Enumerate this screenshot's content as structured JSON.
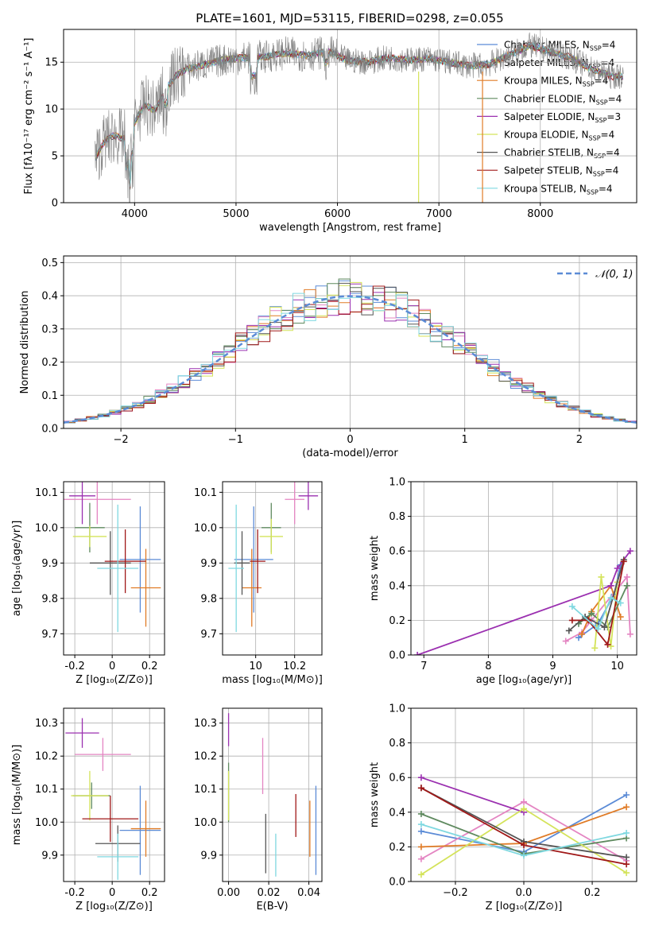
{
  "title": "PLATE=1601, MJD=53115, FIBERID=0298, z=0.055",
  "legend": [
    {
      "label": "Chabrier MILES, N",
      "sub": "SSP",
      "tail": "=4",
      "color": "#5b8bd6"
    },
    {
      "label": "Salpeter MILES, N",
      "sub": "SSP",
      "tail": "=4",
      "color": "#e485c2"
    },
    {
      "label": "Kroupa MILES, N",
      "sub": "SSP",
      "tail": "=4",
      "color": "#e07b26"
    },
    {
      "label": "Chabrier ELODIE, N",
      "sub": "SSP",
      "tail": "=4",
      "color": "#5f8a5f"
    },
    {
      "label": "Salpeter ELODIE, N",
      "sub": "SSP",
      "tail": "=3",
      "color": "#9b30b0"
    },
    {
      "label": "Kroupa ELODIE, N",
      "sub": "SSP",
      "tail": "=4",
      "color": "#d4e35a"
    },
    {
      "label": "Chabrier STELIB, N",
      "sub": "SSP",
      "tail": "=4",
      "color": "#555555"
    },
    {
      "label": "Salpeter STELIB, N",
      "sub": "SSP",
      "tail": "=4",
      "color": "#a01818"
    },
    {
      "label": "Kroupa STELIB, N",
      "sub": "SSP",
      "tail": "=4",
      "color": "#7fd8e0"
    }
  ],
  "chart_data": [
    {
      "type": "line",
      "id": "spectrum",
      "xlabel": "wavelength [Angstrom, rest frame]",
      "ylabel": "Flux [fλ10⁻¹⁷ erg cm⁻² s⁻¹ A⁻¹]",
      "xlim": [
        3300,
        8950
      ],
      "ylim": [
        0,
        18.5
      ],
      "xticks": [
        4000,
        5000,
        6000,
        7000,
        8000
      ],
      "yticks": [
        0,
        5,
        10,
        15
      ],
      "x": [
        3600,
        3700,
        3800,
        3900,
        4000,
        4100,
        4200,
        4300,
        4400,
        4500,
        4700,
        4900,
        5100,
        5300,
        5500,
        5700,
        5900,
        6100,
        6300,
        6500,
        6700,
        6900,
        7100,
        7300,
        7500,
        7700,
        7900,
        8100,
        8300,
        8500,
        8700
      ],
      "y": [
        4.5,
        6.5,
        7.2,
        6.8,
        8.5,
        10.5,
        9.8,
        12.0,
        13.5,
        14.2,
        14.8,
        15.3,
        15.5,
        15.6,
        16.0,
        15.7,
        16.2,
        15.2,
        15.0,
        15.5,
        15.2,
        15.4,
        15.0,
        14.6,
        14.8,
        15.8,
        16.8,
        16.1,
        15.5,
        14.3,
        13.5
      ]
    },
    {
      "type": "bar",
      "id": "residuals",
      "xlabel": "(data-model)/error",
      "ylabel": "Normed distribution",
      "xlim": [
        -2.5,
        2.5
      ],
      "ylim": [
        0,
        0.52
      ],
      "xticks": [
        -2,
        -1,
        0,
        1,
        2
      ],
      "xtick_labels": [
        "−2",
        "−1",
        "0",
        "1",
        "2"
      ],
      "yticks": [
        0.0,
        0.1,
        0.2,
        0.3,
        0.4,
        0.5
      ],
      "legend": "𝒩(0, 1)",
      "bin_width": 0.1,
      "gaussian": {
        "mean": 0,
        "sigma": 1
      }
    },
    {
      "type": "scatter",
      "id": "age-vs-Z",
      "xlabel": "Z [log₁₀(Z/Z⊙)]",
      "ylabel": "age  [log₁₀(age/yr)]",
      "xlim": [
        -0.26,
        0.28
      ],
      "ylim": [
        9.64,
        10.13
      ],
      "xticks": [
        -0.2,
        0.0,
        0.2
      ],
      "yticks": [
        9.7,
        9.8,
        9.9,
        10.0,
        10.1
      ],
      "points": [
        {
          "x": 0.15,
          "y": 9.91,
          "xe": 0.11,
          "ye": 0.15,
          "c": "#5b8bd6"
        },
        {
          "x": -0.08,
          "y": 10.08,
          "xe": 0.18,
          "ye": 0.07,
          "c": "#e485c2"
        },
        {
          "x": 0.18,
          "y": 9.83,
          "xe": 0.08,
          "ye": 0.11,
          "c": "#e07b26"
        },
        {
          "x": -0.12,
          "y": 10.0,
          "xe": 0.08,
          "ye": 0.07,
          "c": "#5f8a5f"
        },
        {
          "x": -0.16,
          "y": 10.09,
          "xe": 0.07,
          "ye": 0.08,
          "c": "#9b30b0"
        },
        {
          "x": -0.12,
          "y": 9.975,
          "xe": 0.09,
          "ye": 0.03,
          "c": "#d4e35a"
        },
        {
          "x": -0.01,
          "y": 9.9,
          "xe": 0.11,
          "ye": 0.09,
          "c": "#555555"
        },
        {
          "x": 0.07,
          "y": 9.905,
          "xe": 0.11,
          "ye": 0.09,
          "c": "#a01818"
        },
        {
          "x": 0.03,
          "y": 9.885,
          "xe": 0.11,
          "ye": 0.18,
          "c": "#7fd8e0"
        }
      ]
    },
    {
      "type": "scatter",
      "id": "age-vs-mass",
      "xlabel": "mass [log₁₀(M/M⊙)]",
      "ylabel": "",
      "xlim": [
        9.83,
        10.34
      ],
      "ylim": [
        9.64,
        10.13
      ],
      "xticks": [
        10.0,
        10.2
      ],
      "yticks": [
        9.7,
        9.8,
        9.9,
        10.0,
        10.1
      ],
      "points": [
        {
          "x": 9.99,
          "y": 9.91,
          "xe": 0.1,
          "ye": 0.15,
          "c": "#5b8bd6"
        },
        {
          "x": 10.2,
          "y": 10.08,
          "xe": 0.05,
          "ye": 0.07,
          "c": "#e485c2"
        },
        {
          "x": 9.98,
          "y": 9.83,
          "xe": 0.05,
          "ye": 0.11,
          "c": "#e07b26"
        },
        {
          "x": 10.08,
          "y": 10.0,
          "xe": 0.05,
          "ye": 0.07,
          "c": "#5f8a5f"
        },
        {
          "x": 10.27,
          "y": 10.09,
          "xe": 0.05,
          "ye": 0.04,
          "c": "#9b30b0"
        },
        {
          "x": 10.08,
          "y": 9.975,
          "xe": 0.06,
          "ye": 0.05,
          "c": "#d4e35a"
        },
        {
          "x": 9.93,
          "y": 9.9,
          "xe": 0.04,
          "ye": 0.09,
          "c": "#555555"
        },
        {
          "x": 10.01,
          "y": 9.905,
          "xe": 0.04,
          "ye": 0.09,
          "c": "#a01818"
        },
        {
          "x": 9.9,
          "y": 9.885,
          "xe": 0.04,
          "ye": 0.18,
          "c": "#7fd8e0"
        }
      ]
    },
    {
      "type": "line",
      "id": "weight-vs-age",
      "xlabel": "age  [log₁₀(age/yr)]",
      "ylabel": "mass weight",
      "xlim": [
        6.8,
        10.3
      ],
      "ylim": [
        0,
        1.0
      ],
      "xticks": [
        7,
        8,
        9,
        10
      ],
      "yticks": [
        0.0,
        0.2,
        0.4,
        0.6,
        0.8,
        1.0
      ],
      "series": [
        {
          "c": "#5b8bd6",
          "x": [
            9.4,
            9.7,
            9.95,
            10.05
          ],
          "y": [
            0.1,
            0.18,
            0.35,
            0.52
          ]
        },
        {
          "c": "#e485c2",
          "x": [
            9.2,
            9.45,
            9.6,
            10.15,
            10.2
          ],
          "y": [
            0.08,
            0.13,
            0.2,
            0.45,
            0.12
          ]
        },
        {
          "c": "#e07b26",
          "x": [
            9.45,
            9.6,
            9.9,
            10.05
          ],
          "y": [
            0.12,
            0.25,
            0.4,
            0.22
          ]
        },
        {
          "c": "#5f8a5f",
          "x": [
            9.4,
            9.6,
            9.85,
            10.15
          ],
          "y": [
            0.18,
            0.24,
            0.16,
            0.4
          ]
        },
        {
          "c": "#9b30b0",
          "x": [
            6.9,
            9.9,
            10.0,
            10.2
          ],
          "y": [
            0.0,
            0.4,
            0.5,
            0.6
          ]
        },
        {
          "c": "#d4e35a",
          "x": [
            9.65,
            9.75,
            9.9,
            10.0
          ],
          "y": [
            0.04,
            0.45,
            0.05,
            0.42
          ]
        },
        {
          "c": "#555555",
          "x": [
            9.25,
            9.5,
            9.8,
            10.1
          ],
          "y": [
            0.14,
            0.22,
            0.16,
            0.55
          ]
        },
        {
          "c": "#a01818",
          "x": [
            9.3,
            9.55,
            9.85,
            10.1
          ],
          "y": [
            0.2,
            0.2,
            0.06,
            0.54
          ]
        },
        {
          "c": "#7fd8e0",
          "x": [
            9.3,
            9.7,
            9.9,
            10.05
          ],
          "y": [
            0.28,
            0.15,
            0.33,
            0.3
          ]
        }
      ]
    },
    {
      "type": "scatter",
      "id": "mass-vs-Z",
      "xlabel": "Z [log₁₀(Z/Z⊙)]",
      "ylabel": "mass [log₁₀(M/M⊙)]",
      "xlim": [
        -0.26,
        0.28
      ],
      "ylim": [
        9.82,
        10.345
      ],
      "xticks": [
        -0.2,
        0.0,
        0.2
      ],
      "yticks": [
        9.9,
        10.0,
        10.1,
        10.2,
        10.3
      ],
      "points": [
        {
          "x": 0.15,
          "y": 9.975,
          "xe": 0.11,
          "ye": 0.135,
          "c": "#5b8bd6"
        },
        {
          "x": -0.05,
          "y": 10.205,
          "xe": 0.15,
          "ye": 0.05,
          "c": "#e485c2"
        },
        {
          "x": 0.18,
          "y": 9.98,
          "xe": 0.08,
          "ye": 0.085,
          "c": "#e07b26"
        },
        {
          "x": -0.11,
          "y": 10.08,
          "xe": 0.1,
          "ye": 0.04,
          "c": "#5f8a5f"
        },
        {
          "x": -0.16,
          "y": 10.27,
          "xe": 0.09,
          "ye": 0.045,
          "c": "#9b30b0"
        },
        {
          "x": -0.12,
          "y": 10.08,
          "xe": 0.1,
          "ye": 0.075,
          "c": "#d4e35a"
        },
        {
          "x": 0.03,
          "y": 9.935,
          "xe": 0.12,
          "ye": 0.055,
          "c": "#555555"
        },
        {
          "x": -0.01,
          "y": 10.01,
          "xe": 0.15,
          "ye": 0.07,
          "c": "#a01818"
        },
        {
          "x": 0.03,
          "y": 9.895,
          "xe": 0.11,
          "ye": 0.07,
          "c": "#7fd8e0"
        }
      ]
    },
    {
      "type": "scatter",
      "id": "mass-vs-ebv",
      "xlabel": "E(B-V)",
      "ylabel": "",
      "xlim": [
        -0.003,
        0.0465
      ],
      "ylim": [
        9.82,
        10.345
      ],
      "xticks": [
        0.0,
        0.02,
        0.04
      ],
      "xtick_labels": [
        "0.00",
        "0.02",
        "0.04"
      ],
      "yticks": [
        9.9,
        10.0,
        10.1,
        10.2,
        10.3
      ],
      "points": [
        {
          "x": 0.0435,
          "y": 9.975,
          "ye": 0.135,
          "c": "#5b8bd6"
        },
        {
          "x": 0.017,
          "y": 10.17,
          "ye": 0.085,
          "c": "#e485c2"
        },
        {
          "x": 0.0405,
          "y": 9.98,
          "ye": 0.085,
          "c": "#e07b26"
        },
        {
          "x": 0.0,
          "y": 10.09,
          "ye": 0.09,
          "c": "#5f8a5f"
        },
        {
          "x": 0.0,
          "y": 10.28,
          "ye": 0.05,
          "c": "#9b30b0"
        },
        {
          "x": 0.0,
          "y": 10.08,
          "ye": 0.075,
          "c": "#d4e35a"
        },
        {
          "x": 0.0185,
          "y": 9.935,
          "ye": 0.09,
          "c": "#555555"
        },
        {
          "x": 0.0335,
          "y": 10.02,
          "ye": 0.065,
          "c": "#a01818"
        },
        {
          "x": 0.0235,
          "y": 9.9,
          "ye": 0.065,
          "c": "#7fd8e0"
        }
      ]
    },
    {
      "type": "line",
      "id": "weight-vs-Z",
      "xlabel": "Z [log₁₀(Z/Z⊙)]",
      "ylabel": "mass weight",
      "xlim": [
        -0.33,
        0.33
      ],
      "ylim": [
        0,
        1.0
      ],
      "xticks": [
        -0.2,
        0.0,
        0.2
      ],
      "xtick_labels": [
        "−0.2",
        "0.0",
        "0.2"
      ],
      "yticks": [
        0.0,
        0.2,
        0.4,
        0.6,
        0.8,
        1.0
      ],
      "series": [
        {
          "c": "#5b8bd6",
          "x": [
            -0.3,
            0.0,
            0.3
          ],
          "y": [
            0.29,
            0.17,
            0.5
          ]
        },
        {
          "c": "#e485c2",
          "x": [
            -0.3,
            0.0,
            0.3
          ],
          "y": [
            0.13,
            0.46,
            0.12
          ]
        },
        {
          "c": "#e07b26",
          "x": [
            -0.3,
            0.0,
            0.3
          ],
          "y": [
            0.2,
            0.22,
            0.43
          ]
        },
        {
          "c": "#5f8a5f",
          "x": [
            -0.3,
            0.0,
            0.3
          ],
          "y": [
            0.39,
            0.16,
            0.25
          ]
        },
        {
          "c": "#9b30b0",
          "x": [
            -0.3,
            0.0
          ],
          "y": [
            0.6,
            0.4
          ]
        },
        {
          "c": "#d4e35a",
          "x": [
            -0.3,
            0.0,
            0.3
          ],
          "y": [
            0.04,
            0.42,
            0.05
          ]
        },
        {
          "c": "#555555",
          "x": [
            -0.3,
            0.0,
            0.3
          ],
          "y": [
            0.54,
            0.23,
            0.14
          ]
        },
        {
          "c": "#a01818",
          "x": [
            -0.3,
            0.0,
            0.3
          ],
          "y": [
            0.54,
            0.21,
            0.1
          ]
        },
        {
          "c": "#7fd8e0",
          "x": [
            -0.3,
            0.0,
            0.3
          ],
          "y": [
            0.33,
            0.15,
            0.28
          ]
        }
      ]
    }
  ]
}
